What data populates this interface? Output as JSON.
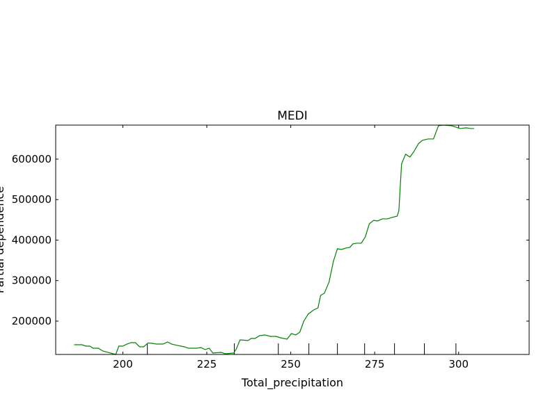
{
  "chart_data": {
    "type": "line",
    "title": "MEDI",
    "xlabel": "Total_precipitation",
    "ylabel": "Partial dependence",
    "x": [
      185.5,
      187.8,
      189.0,
      190.2,
      191.1,
      192.7,
      194.0,
      195.6,
      197.1,
      197.9,
      198.8,
      200.0,
      201.2,
      202.5,
      203.7,
      205.0,
      206.2,
      207.5,
      208.7,
      210.0,
      212.0,
      213.3,
      214.5,
      216.2,
      218.3,
      219.5,
      222.0,
      223.2,
      224.5,
      225.7,
      226.8,
      229.3,
      230.5,
      233.0,
      233.8,
      234.9,
      237.3,
      238.2,
      239.4,
      240.7,
      242.3,
      244.0,
      245.6,
      246.9,
      248.9,
      250.2,
      251.5,
      252.7,
      253.9,
      255.2,
      256.8,
      258.1,
      258.9,
      260.0,
      261.4,
      262.7,
      263.9,
      265.1,
      266.4,
      267.6,
      268.5,
      269.7,
      271.0,
      272.2,
      273.4,
      274.7,
      275.9,
      277.2,
      278.8,
      280.1,
      281.7,
      282.2,
      283.0,
      284.2,
      285.5,
      286.7,
      288.0,
      289.2,
      290.9,
      292.5,
      294.0,
      295.4,
      297.9,
      299.2,
      300.4,
      302.3,
      303.5,
      304.6
    ],
    "series": [
      {
        "name": "MEDI",
        "color": "#008000",
        "values": [
          141600,
          141600,
          138200,
          138200,
          133000,
          133000,
          126200,
          122700,
          119300,
          117800,
          138200,
          138200,
          143300,
          146800,
          146800,
          136500,
          136500,
          146000,
          145100,
          143300,
          143300,
          148500,
          143300,
          140000,
          136500,
          133000,
          133000,
          134800,
          129600,
          133000,
          121000,
          122700,
          119300,
          121000,
          131300,
          153600,
          151900,
          157100,
          157100,
          164000,
          165700,
          162200,
          162200,
          158800,
          155400,
          169100,
          165700,
          172500,
          200000,
          217200,
          227500,
          232600,
          263500,
          268700,
          296100,
          347600,
          378500,
          376800,
          380300,
          382000,
          390600,
          392300,
          392300,
          407700,
          440300,
          448900,
          447200,
          452400,
          452400,
          455800,
          459200,
          472900,
          588000,
          612000,
          605200,
          618900,
          637800,
          646400,
          649800,
          649800,
          682400,
          683900,
          682400,
          679000,
          675500,
          677300,
          675500,
          675500
        ]
      }
    ],
    "deciles": [
      207.3,
      233.2,
      246.3,
      255.4,
      263.9,
      272.0,
      280.9,
      289.8,
      299.2
    ],
    "xlim": [
      180,
      321
    ],
    "ylim": [
      117600,
      684000
    ],
    "xticks": [
      200,
      225,
      250,
      275,
      300
    ],
    "yticks": [
      200000,
      300000,
      400000,
      500000,
      600000
    ]
  }
}
